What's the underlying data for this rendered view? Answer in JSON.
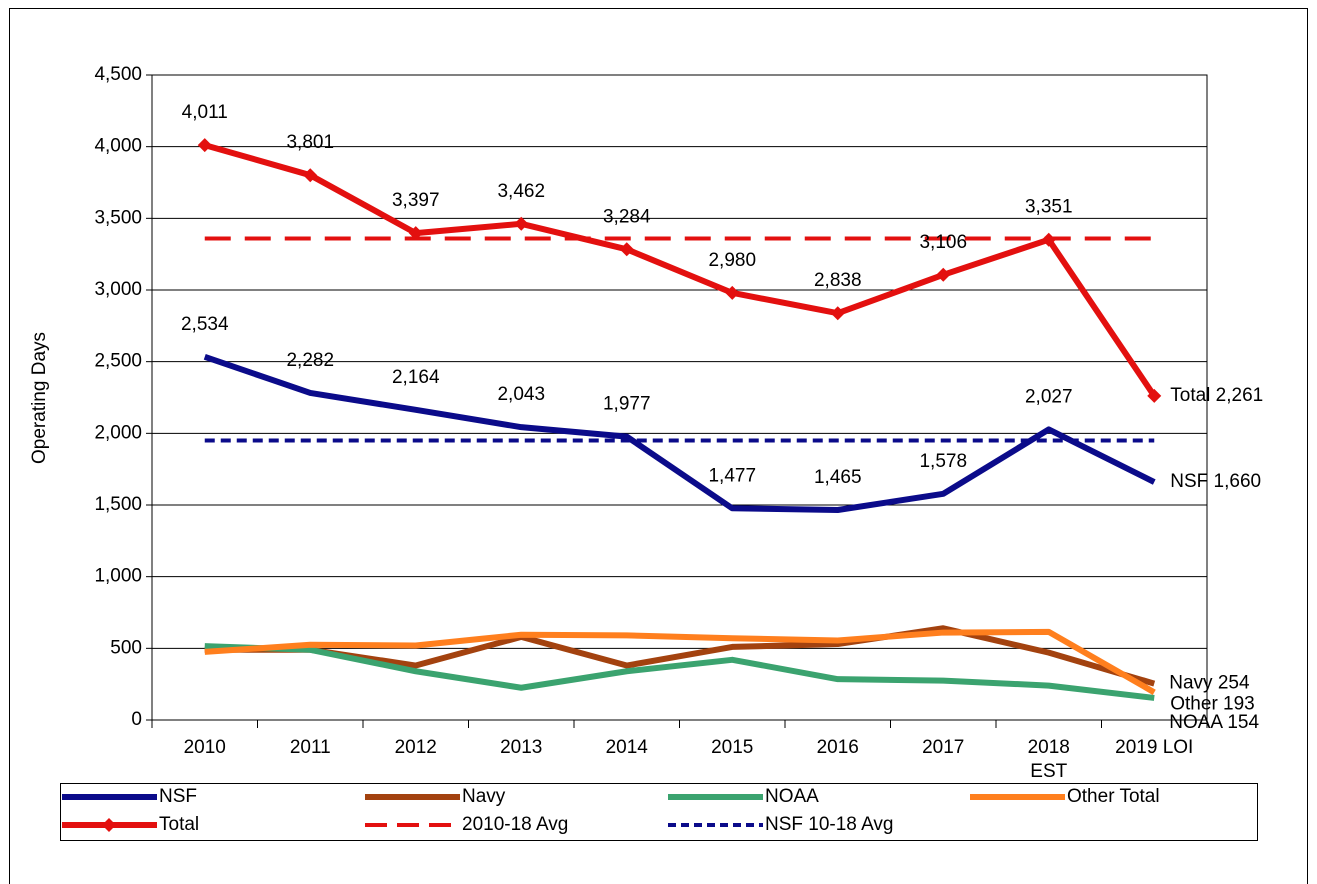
{
  "chart_data": {
    "type": "line",
    "y_label": "Operating Days",
    "categories": [
      "2010",
      "2011",
      "2012",
      "2013",
      "2014",
      "2015",
      "2016",
      "2017",
      "2018\nEST",
      "2019 LOI"
    ],
    "ylim": [
      0,
      4500
    ],
    "yticks": [
      0,
      500,
      {
        "value": 1000,
        "label": "1,000"
      },
      {
        "value": 1500,
        "label": "1,500"
      },
      {
        "value": 2000,
        "label": "2,000"
      },
      {
        "value": 2500,
        "label": "2,500"
      },
      {
        "value": 3000,
        "label": "3,000"
      },
      {
        "value": 3500,
        "label": "3,500"
      },
      {
        "value": 4000,
        "label": "4,000"
      },
      {
        "value": 4500,
        "label": "4,500"
      }
    ],
    "grid": true,
    "legend": "bottom",
    "series": [
      {
        "name": "NSF",
        "color": "#0b0b8a",
        "line_style": "solid",
        "marker": "none",
        "values": [
          2534,
          2282,
          2164,
          2043,
          1977,
          1477,
          1465,
          1578,
          2027,
          1660
        ],
        "value_labels": [
          "2,534",
          "2,282",
          "2,164",
          "2,043",
          "1,977",
          "1,477",
          "1,465",
          "1,578",
          "2,027",
          "NSF 1,660"
        ]
      },
      {
        "name": "Navy",
        "color": "#a3420f",
        "line_style": "solid",
        "marker": "none",
        "values": [
          490,
          490,
          380,
          580,
          380,
          510,
          530,
          640,
          470,
          254
        ],
        "value_labels": [
          null,
          null,
          null,
          null,
          null,
          null,
          null,
          null,
          null,
          "Navy 254"
        ]
      },
      {
        "name": "NOAA",
        "color": "#3ba36f",
        "line_style": "solid",
        "marker": "none",
        "values": [
          515,
          490,
          340,
          225,
          340,
          420,
          285,
          275,
          240,
          154
        ],
        "value_labels": [
          null,
          null,
          null,
          null,
          null,
          null,
          null,
          null,
          null,
          "NOAA  154"
        ]
      },
      {
        "name": "Other Total",
        "color": "#ff7f1e",
        "line_style": "solid",
        "marker": "none",
        "values": [
          475,
          525,
          520,
          595,
          590,
          570,
          555,
          610,
          615,
          193
        ],
        "value_labels": [
          null,
          null,
          null,
          null,
          null,
          null,
          null,
          null,
          null,
          "Other 193"
        ]
      },
      {
        "name": "Total",
        "color": "#e3100f",
        "line_style": "solid",
        "marker": "diamond",
        "values": [
          4011,
          3801,
          3397,
          3462,
          3284,
          2980,
          2838,
          3106,
          3351,
          2261
        ],
        "value_labels": [
          "4,011",
          "3,801",
          "3,397",
          "3,462",
          "3,284",
          "2,980",
          "2,838",
          "3,106",
          "3,351",
          "Total 2,261"
        ]
      },
      {
        "name": "2010-18 Avg",
        "color": "#e3100f",
        "line_style": "dashed",
        "marker": "none",
        "values": [
          3359,
          3359,
          3359,
          3359,
          3359,
          3359,
          3359,
          3359,
          3359,
          3359
        ]
      },
      {
        "name": "NSF 10-18 Avg",
        "color": "#0b0b8a",
        "line_style": "dotted",
        "marker": "none",
        "values": [
          1950,
          1950,
          1950,
          1950,
          1950,
          1950,
          1950,
          1950,
          1950,
          1950
        ]
      }
    ]
  }
}
